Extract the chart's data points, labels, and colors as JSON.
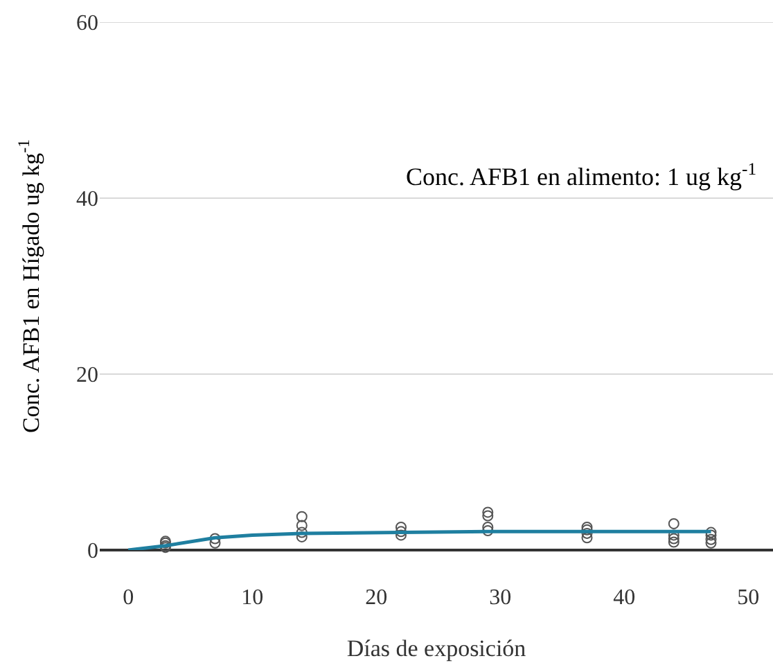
{
  "chart_data": {
    "type": "scatter",
    "xlabel": "Días de exposición",
    "ylabel": "Conc. AFB1 en Hígado ug kg$^{-1}$",
    "annotations": [
      "Conc. AFB1 en alimento: 1 ug kg$^{-1}$"
    ],
    "xlim": [
      -2.3,
      52
    ],
    "xticks": [
      0,
      10,
      20,
      30,
      40,
      50
    ],
    "ylim": [
      0,
      60
    ],
    "yticks": [
      0,
      20,
      40,
      60
    ],
    "grid": "y",
    "series": [
      {
        "marker": "circle",
        "color": "#555555",
        "x": [
          3,
          3,
          3,
          3,
          7,
          7,
          14,
          14,
          14,
          14,
          22,
          22,
          22,
          29,
          29,
          29,
          29,
          37,
          37,
          37,
          37,
          44,
          44,
          44,
          44,
          47,
          47,
          47,
          47
        ],
        "values": [
          0.3,
          0.5,
          0.8,
          1.0,
          0.8,
          1.3,
          1.5,
          2.0,
          2.8,
          3.8,
          1.7,
          2.1,
          2.6,
          2.2,
          2.6,
          3.9,
          4.3,
          1.4,
          1.9,
          2.3,
          2.6,
          0.9,
          1.3,
          1.7,
          3.0,
          0.8,
          1.2,
          1.7,
          2.0
        ]
      },
      {
        "type": "line",
        "color": "#1f7fa0",
        "x": [
          0,
          3,
          7,
          10,
          14,
          22,
          29,
          37,
          44,
          47
        ],
        "values": [
          0,
          0.5,
          1.4,
          1.7,
          1.9,
          2.0,
          2.1,
          2.1,
          2.1,
          2.1
        ]
      }
    ]
  }
}
